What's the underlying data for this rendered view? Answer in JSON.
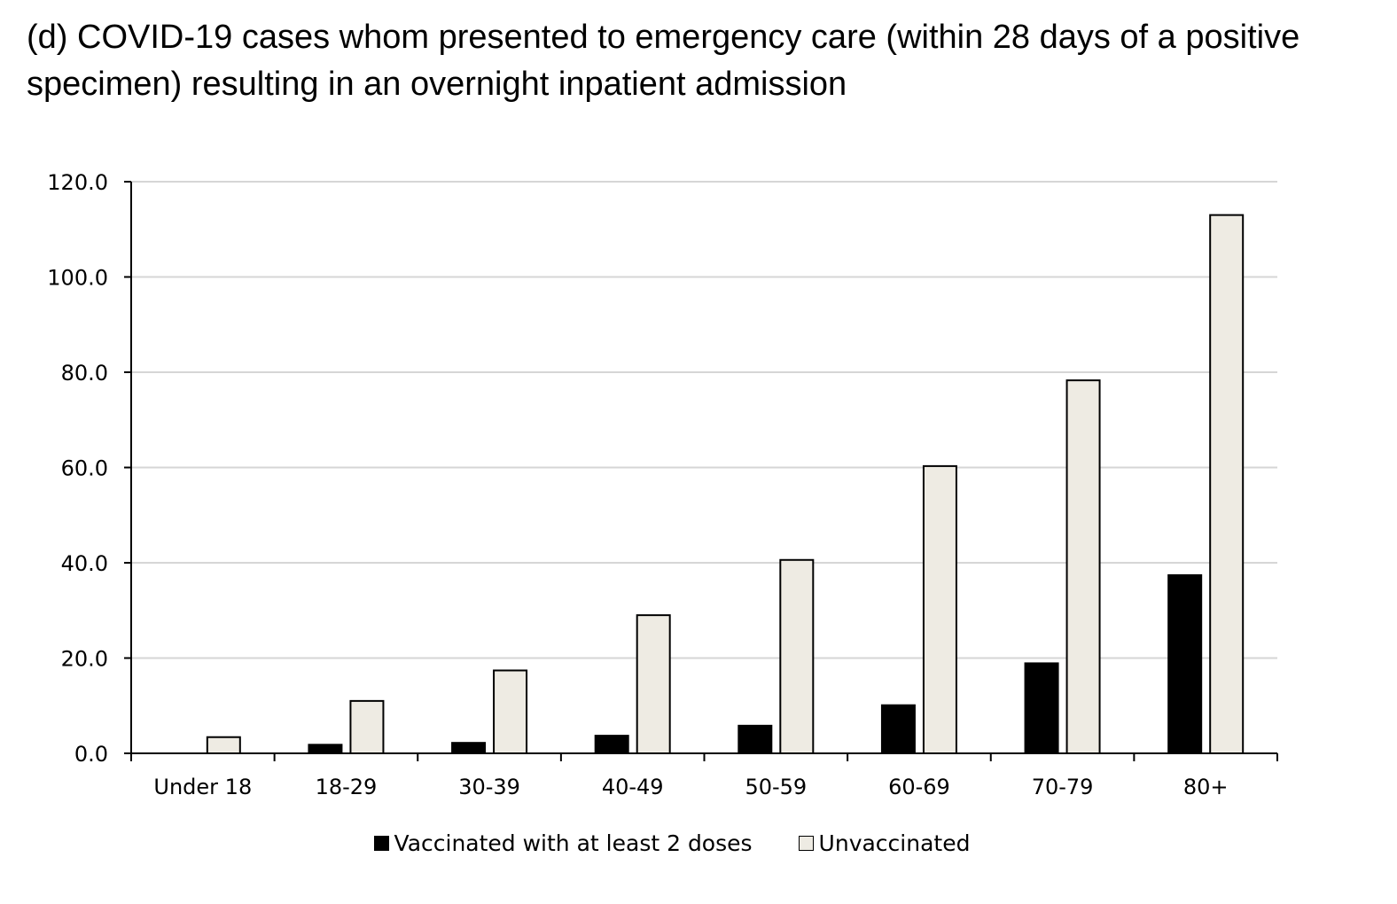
{
  "title": "(d) COVID-19 cases whom presented to emergency care (within 28 days of a positive specimen) resulting in an overnight inpatient admission",
  "chart_data": {
    "type": "bar",
    "title": "(d) COVID-19 cases whom presented to emergency care (within 28 days of a positive specimen) resulting in an overnight inpatient admission",
    "categories": [
      "Under 18",
      "18-29",
      "30-39",
      "40-49",
      "50-59",
      "60-69",
      "70-79",
      "80+"
    ],
    "series": [
      {
        "name": "Vaccinated with at least 2 doses",
        "color": "#000000",
        "values": [
          0.0,
          1.8,
          2.2,
          3.7,
          5.8,
          10.1,
          18.9,
          37.4
        ]
      },
      {
        "name": "Unvaccinated",
        "color": "#eeebe3",
        "values": [
          3.4,
          11.0,
          17.4,
          29.0,
          40.6,
          60.3,
          78.3,
          113.0
        ]
      }
    ],
    "ylim": [
      0,
      120
    ],
    "yticks": [
      "0.0",
      "20.0",
      "40.0",
      "60.0",
      "80.0",
      "100.0",
      "120.0"
    ],
    "grid": true,
    "legend_position": "bottom"
  }
}
